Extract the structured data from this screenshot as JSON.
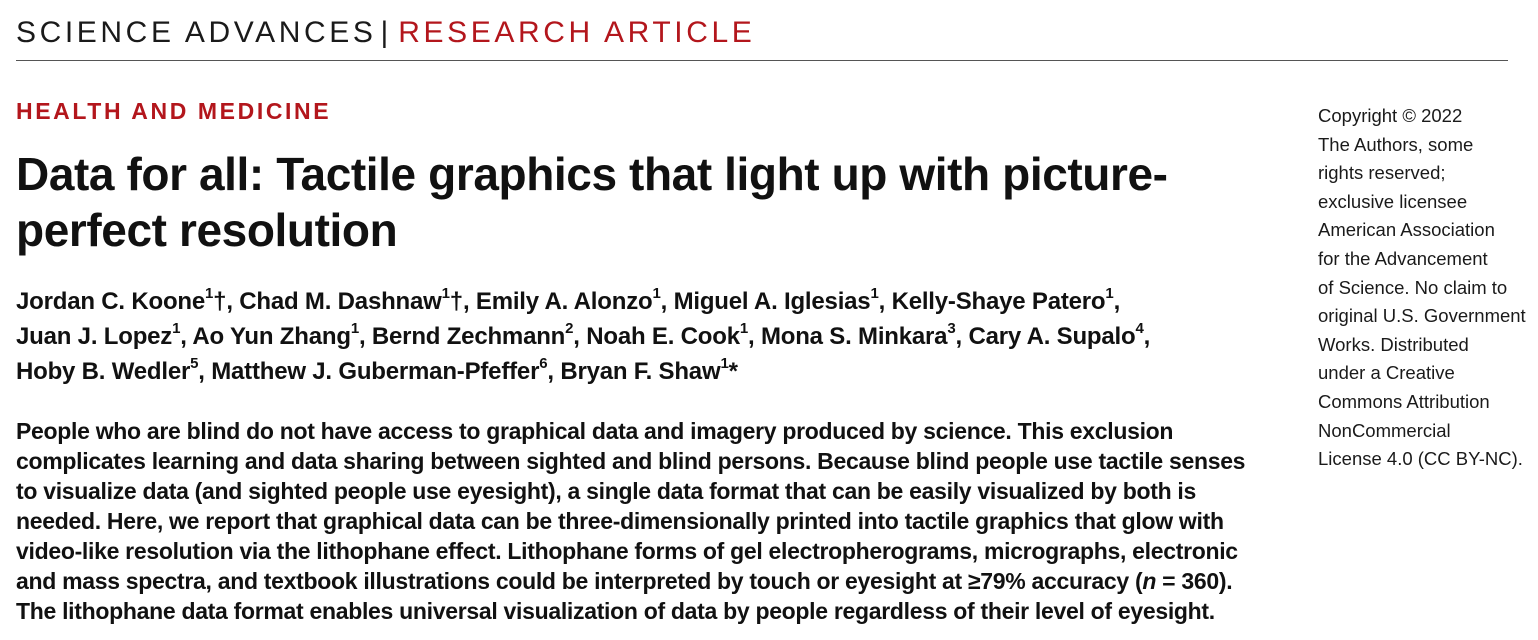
{
  "header": {
    "journal": "SCIENCE ADVANCES",
    "separator": "|",
    "article_type": "RESEARCH ARTICLE"
  },
  "section": "HEALTH AND MEDICINE",
  "title": "Data for all: Tactile graphics that light up with picture-perfect resolution",
  "authors": [
    {
      "name": "Jordan C. Koone",
      "aff": "1",
      "mark": "†",
      "sep": ", "
    },
    {
      "name": "Chad M. Dashnaw",
      "aff": "1",
      "mark": "†",
      "sep": ", "
    },
    {
      "name": "Emily A. Alonzo",
      "aff": "1",
      "mark": "",
      "sep": ", "
    },
    {
      "name": "Miguel A. Iglesias",
      "aff": "1",
      "mark": "",
      "sep": ", "
    },
    {
      "name": "Kelly-Shaye Patero",
      "aff": "1",
      "mark": "",
      "sep": ", "
    },
    {
      "name": "Juan J. Lopez",
      "aff": "1",
      "mark": "",
      "sep": ", "
    },
    {
      "name": "Ao Yun Zhang",
      "aff": "1",
      "mark": "",
      "sep": ", "
    },
    {
      "name": "Bernd Zechmann",
      "aff": "2",
      "mark": "",
      "sep": ", "
    },
    {
      "name": "Noah E. Cook",
      "aff": "1",
      "mark": "",
      "sep": ", "
    },
    {
      "name": "Mona S. Minkara",
      "aff": "3",
      "mark": "",
      "sep": ", "
    },
    {
      "name": "Cary A. Supalo",
      "aff": "4",
      "mark": "",
      "sep": ", "
    },
    {
      "name": "Hoby B. Wedler",
      "aff": "5",
      "mark": "",
      "sep": ", "
    },
    {
      "name": "Matthew J. Guberman-Pfeffer",
      "aff": "6",
      "mark": "",
      "sep": ", "
    },
    {
      "name": "Bryan F. Shaw",
      "aff": "1",
      "mark": "*",
      "sep": ""
    }
  ],
  "abstract": {
    "part1": "People who are blind do not have access to graphical data and imagery produced by science. This exclusion complicates learning and data sharing between sighted and blind persons. Because blind people use tactile senses to visualize data (and sighted people use eyesight), a single data format that can be easily visualized by both is needed. Here, we report that graphical data can be three-dimensionally printed into tactile graphics that glow with video-like resolution via the lithophane effect. Lithophane forms of gel electropherograms, micrographs, electronic and mass spectra, and textbook illustrations could be interpreted by touch or eyesight at ≥79% accuracy (",
    "n_label": "n",
    "part2": " = 360). The lithophane data format enables universal visualization of data by people regardless of their level of eyesight."
  },
  "copyright": {
    "lines": [
      "Copyright © 2022",
      "The Authors, some",
      "rights reserved;",
      "exclusive licensee",
      "American Association",
      "for the Advancement",
      "of Science. No claim to",
      "original U.S. Government",
      "Works. Distributed",
      "under a Creative",
      "Commons Attribution",
      "NonCommercial",
      "License 4.0 (CC BY-NC)."
    ]
  }
}
